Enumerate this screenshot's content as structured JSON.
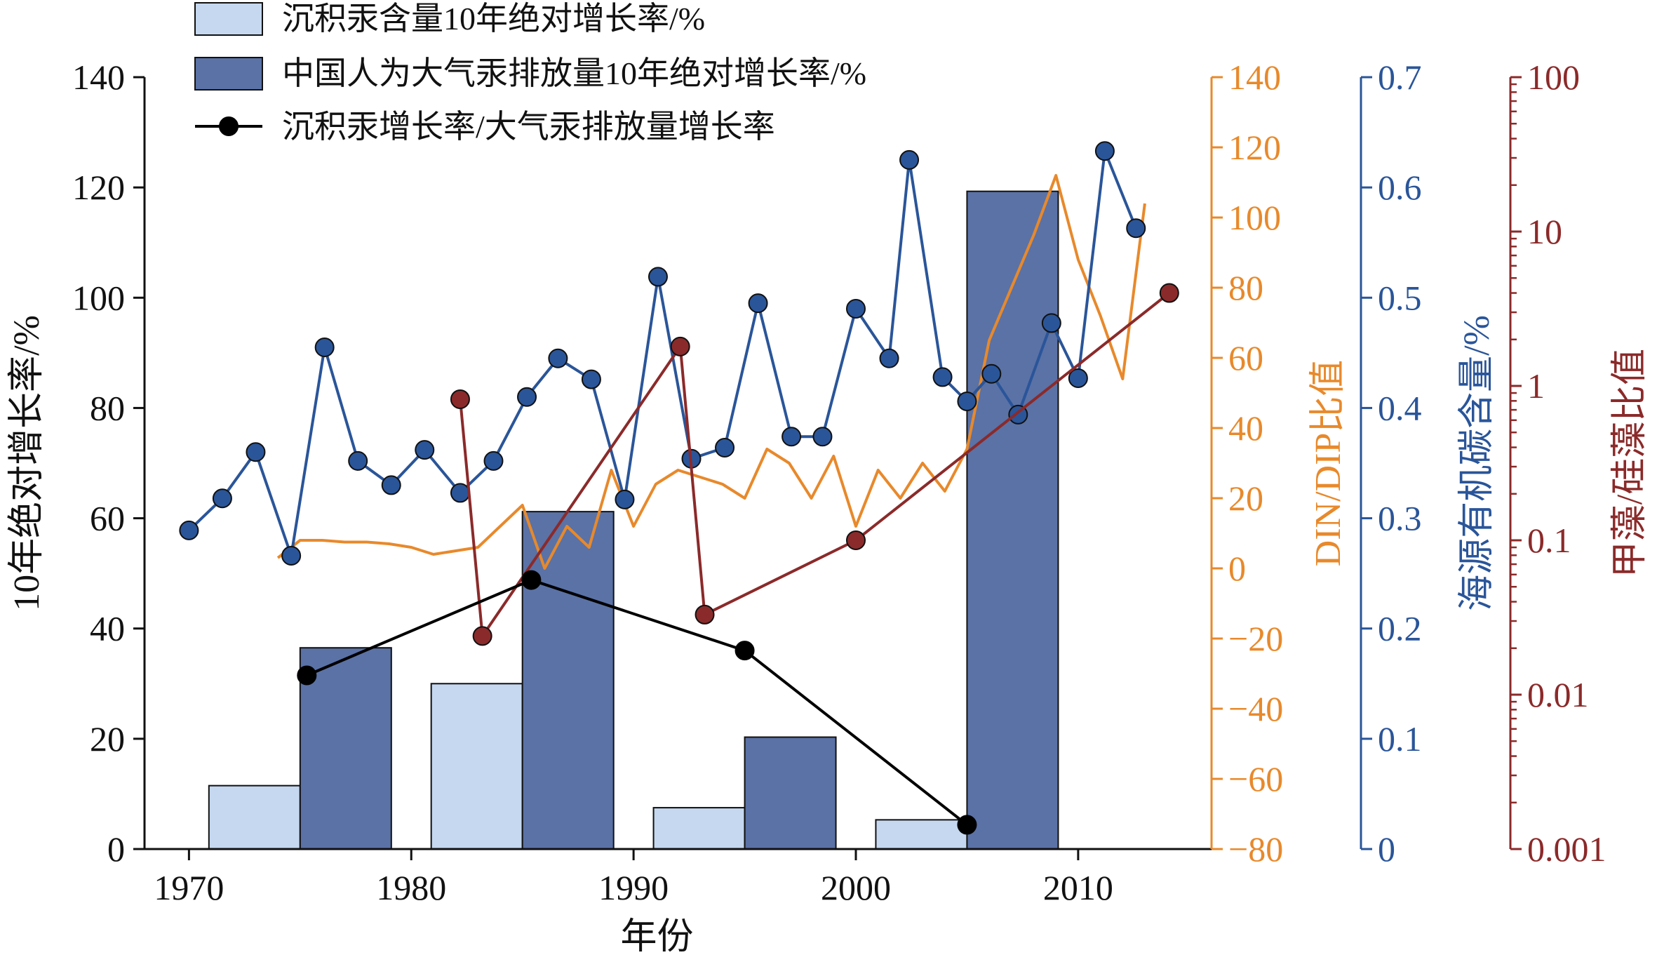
{
  "chart_data": {
    "type": "bar",
    "xlabel": "年份",
    "xlim": [
      1968,
      2016
    ],
    "xticks": [
      1970,
      1980,
      1990,
      2000,
      2010
    ],
    "legend": {
      "placement": "top-left",
      "entries": [
        "沉积汞含量10年绝对增长率/%",
        "中国人为大气汞排放量10年绝对增长率/%",
        "沉积汞增长率/大气汞排放量增长率"
      ]
    },
    "axes": {
      "left": {
        "label": "10年绝对增长率/%",
        "ylim": [
          0,
          140
        ],
        "ticks": [
          0,
          20,
          40,
          60,
          80,
          100,
          120,
          140
        ],
        "color": "#000000"
      },
      "din_dip": {
        "label": "DIN/DIP比值",
        "ylim": [
          -80,
          140
        ],
        "ticks": [
          -80,
          -60,
          -40,
          -20,
          0,
          20,
          40,
          60,
          80,
          100,
          120,
          140
        ],
        "color": "#E8892B"
      },
      "toc": {
        "label": "海源有机碳含量/%",
        "ylim": [
          0,
          0.7
        ],
        "ticks": [
          "0",
          "0.1",
          "0.2",
          "0.3",
          "0.4",
          "0.5",
          "0.6",
          "0.7"
        ],
        "color": "#2A5599"
      },
      "ratio": {
        "label": "甲藻/硅藻比值",
        "scale": "log",
        "ylim": [
          0.001,
          100
        ],
        "ticks": [
          "0.001",
          "0.01",
          "0.1",
          "1",
          "10",
          "100"
        ],
        "color": "#8B2A2A"
      }
    },
    "series": [
      {
        "name": "沉积汞含量10年绝对增长率/%",
        "kind": "bar",
        "axis": "left",
        "color": "#C5D8F0",
        "x": [
          1975,
          1985,
          1995,
          2005
        ],
        "values": [
          11.5,
          30,
          7.5,
          5.3
        ]
      },
      {
        "name": "中国人为大气汞排放量10年绝对增长率/%",
        "kind": "bar",
        "axis": "left",
        "color": "#5A72A6",
        "x": [
          1975,
          1985,
          1995,
          2005
        ],
        "values": [
          36.5,
          61.2,
          20.3,
          119.3
        ]
      },
      {
        "name": "沉积汞增长率/大气汞排放量增长率",
        "kind": "line-marker",
        "axis": "left",
        "color": "#000000",
        "x": [
          1975.3,
          1985.4,
          1995,
          2005
        ],
        "values": [
          31.5,
          48.8,
          36,
          4.4
        ]
      },
      {
        "kind": "line-marker",
        "axis": "toc",
        "color": "#2A5599",
        "x": [
          1970,
          1971.5,
          1973,
          1974.6,
          1976.1,
          1977.6,
          1979.1,
          1980.6,
          1982.2,
          1983.7,
          1985.2,
          1986.6,
          1988.1,
          1989.6,
          1991.1,
          1992.6,
          1994.1,
          1995.6,
          1997.1,
          1998.5,
          2000,
          2001.5,
          2002.4,
          2003.9,
          2005,
          2006.1,
          2007.3,
          2008.8,
          2010,
          2011.2,
          2012.6
        ],
        "values": [
          0.289,
          0.318,
          0.36,
          0.266,
          0.455,
          0.352,
          0.33,
          0.362,
          0.323,
          0.352,
          0.41,
          0.445,
          0.426,
          0.317,
          0.519,
          0.354,
          0.364,
          0.495,
          0.374,
          0.374,
          0.49,
          0.445,
          0.625,
          0.428,
          0.406,
          0.431,
          0.394,
          0.477,
          0.427,
          0.633,
          0.563
        ]
      },
      {
        "kind": "line",
        "axis": "din_dip",
        "color": "#E8892B",
        "x": [
          1974,
          1975,
          1976,
          1977,
          1978,
          1979,
          1980,
          1981,
          1982,
          1983,
          1984,
          1985,
          1986,
          1987,
          1988,
          1989,
          1990,
          1991,
          1992,
          1993,
          1994,
          1995,
          1996,
          1997,
          1998,
          1999,
          2000,
          2001,
          2002,
          2003,
          2004,
          2005,
          2006,
          2007,
          2008,
          2009,
          2010,
          2011,
          2012,
          2013
        ],
        "values": [
          3,
          8,
          8,
          7.5,
          7.5,
          7,
          6,
          4,
          5,
          6,
          12,
          18,
          0,
          12,
          6,
          28,
          12,
          24,
          28,
          26,
          24,
          20,
          34,
          30,
          20,
          32,
          12,
          28,
          20,
          30,
          22,
          34,
          65,
          80,
          95,
          112,
          88,
          72,
          54,
          104
        ]
      },
      {
        "kind": "line-marker",
        "axis": "ratio",
        "color": "#8B2A2A",
        "x": [
          1982.2,
          1983.2,
          1992.1,
          1993.2,
          2000,
          2014.1
        ],
        "values": [
          0.82,
          0.024,
          1.8,
          0.033,
          0.1,
          4.0
        ]
      }
    ]
  }
}
